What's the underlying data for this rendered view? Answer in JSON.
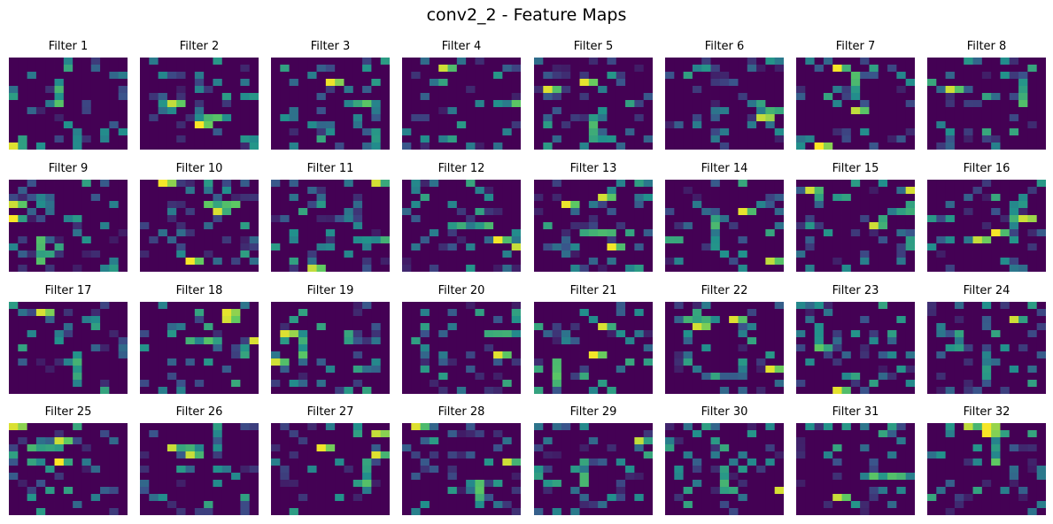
{
  "figure": {
    "title": "conv2_2 - Feature Maps"
  },
  "colormap": {
    "name": "viridis",
    "stops": [
      "#440154",
      "#3b528b",
      "#21918c",
      "#5ec962",
      "#fde725"
    ]
  },
  "grid": {
    "rows": 4,
    "cols": 8,
    "cells_per_map": [
      13,
      13
    ]
  },
  "chart_data": {
    "type": "heatmap",
    "panels": [
      {
        "title": "Filter 1"
      },
      {
        "title": "Filter 2"
      },
      {
        "title": "Filter 3"
      },
      {
        "title": "Filter 4"
      },
      {
        "title": "Filter 5"
      },
      {
        "title": "Filter 6"
      },
      {
        "title": "Filter 7"
      },
      {
        "title": "Filter 8"
      },
      {
        "title": "Filter 9"
      },
      {
        "title": "Filter 10"
      },
      {
        "title": "Filter 11"
      },
      {
        "title": "Filter 12"
      },
      {
        "title": "Filter 13"
      },
      {
        "title": "Filter 14"
      },
      {
        "title": "Filter 15"
      },
      {
        "title": "Filter 16"
      },
      {
        "title": "Filter 17"
      },
      {
        "title": "Filter 18"
      },
      {
        "title": "Filter 19"
      },
      {
        "title": "Filter 20"
      },
      {
        "title": "Filter 21"
      },
      {
        "title": "Filter 22"
      },
      {
        "title": "Filter 23"
      },
      {
        "title": "Filter 24"
      },
      {
        "title": "Filter 25"
      },
      {
        "title": "Filter 26"
      },
      {
        "title": "Filter 27"
      },
      {
        "title": "Filter 28"
      },
      {
        "title": "Filter 29"
      },
      {
        "title": "Filter 30"
      },
      {
        "title": "Filter 31"
      },
      {
        "title": "Filter 32"
      }
    ]
  }
}
